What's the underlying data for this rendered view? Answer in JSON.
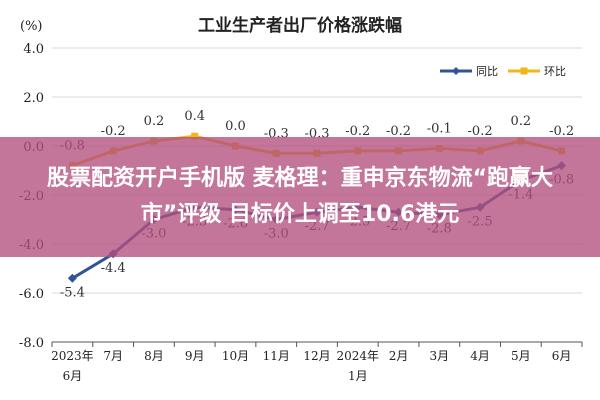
{
  "chart_data": {
    "type": "line",
    "title": "工业生产者出厂价格涨跌幅",
    "unit_label": "(%)",
    "categories": [
      {
        "line1": "2023年",
        "line2": "6月"
      },
      {
        "line1": "7月",
        "line2": ""
      },
      {
        "line1": "8月",
        "line2": ""
      },
      {
        "line1": "9月",
        "line2": ""
      },
      {
        "line1": "10月",
        "line2": ""
      },
      {
        "line1": "11月",
        "line2": ""
      },
      {
        "line1": "12月",
        "line2": ""
      },
      {
        "line1": "2024年",
        "line2": "1月"
      },
      {
        "line1": "2月",
        "line2": ""
      },
      {
        "line1": "3月",
        "line2": ""
      },
      {
        "line1": "4月",
        "line2": ""
      },
      {
        "line1": "5月",
        "line2": ""
      },
      {
        "line1": "6月",
        "line2": ""
      }
    ],
    "series": [
      {
        "name": "同比",
        "color": "#2f5597",
        "marker": "diamond",
        "values": [
          -5.4,
          -4.4,
          -3.0,
          -2.5,
          -2.6,
          -3.0,
          -2.7,
          -2.5,
          -2.7,
          -2.8,
          -2.5,
          -1.4,
          -0.8
        ],
        "labels": [
          "-5.4",
          "-4.4",
          "-3.0",
          "-2.5",
          "-2.6",
          "-3.0",
          "-2.7",
          "-2.5",
          "-2.7",
          "-2.8",
          "-2.5",
          "-1.4",
          "-0.8"
        ]
      },
      {
        "name": "环比",
        "color": "#f2b61b",
        "marker": "square",
        "values": [
          -0.8,
          -0.2,
          0.2,
          0.4,
          0.0,
          -0.3,
          -0.3,
          -0.2,
          -0.2,
          -0.1,
          -0.2,
          0.2,
          -0.2
        ],
        "labels": [
          "-0.8",
          "-0.2",
          "0.2",
          "0.4",
          "0.0",
          "-0.3",
          "-0.3",
          "-0.2",
          "-0.2",
          "-0.1",
          "-0.2",
          "0.2",
          "-0.2"
        ]
      }
    ],
    "ylim": [
      -8.0,
      4.0
    ],
    "yticks": [
      "4.0",
      "2.0",
      "0.0",
      "-2.0",
      "-4.0",
      "-6.0",
      "-8.0"
    ],
    "grid": true,
    "legend_position": "top-right"
  },
  "overlay": {
    "lines": [
      "股票配资开户手机版 麦格理：重申京东物流“跑赢大",
      "市”评级 目标价上调至10.6港元"
    ]
  }
}
